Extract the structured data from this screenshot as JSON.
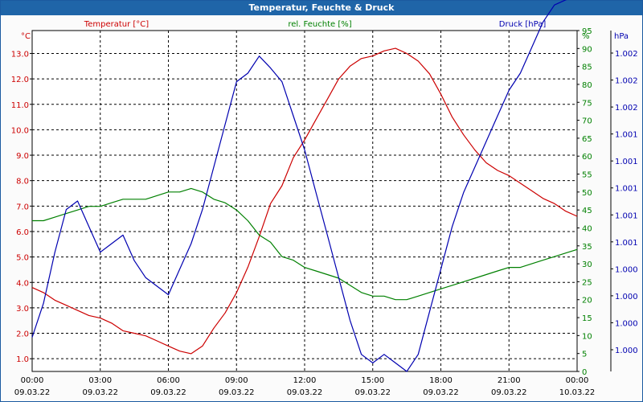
{
  "title": "Temperatur, Feuchte & Druck",
  "colors": {
    "titlebar": "#1f65a8",
    "temperature": "#cc0000",
    "humidity": "#008000",
    "pressure": "#0000b0",
    "grid": "#000000"
  },
  "chart_data": {
    "type": "line",
    "title": "Temperatur, Feuchte & Druck",
    "grid": true,
    "x_axis": {
      "ticks": [
        {
          "time": "00:00",
          "date": "09.03.22"
        },
        {
          "time": "03:00",
          "date": "09.03.22"
        },
        {
          "time": "06:00",
          "date": "09.03.22"
        },
        {
          "time": "09:00",
          "date": "09.03.22"
        },
        {
          "time": "12:00",
          "date": "09.03.22"
        },
        {
          "time": "15:00",
          "date": "09.03.22"
        },
        {
          "time": "18:00",
          "date": "09.03.22"
        },
        {
          "time": "21:00",
          "date": "09.03.22"
        },
        {
          "time": "00:00",
          "date": "10.03.22"
        }
      ],
      "range_hours": [
        0,
        24
      ]
    },
    "axes": {
      "left": {
        "label": "Temperatur [°C]",
        "unit": "°C",
        "range": [
          0.5,
          13.9
        ],
        "ticks": [
          "1.0",
          "2.0",
          "3.0",
          "4.0",
          "5.0",
          "6.0",
          "7.0",
          "8.0",
          "9.0",
          "10.0",
          "11.0",
          "12.0",
          "13.0"
        ]
      },
      "right1": {
        "label": "rel. Feuchte [%]",
        "unit": "%",
        "range": [
          0,
          95
        ],
        "ticks": [
          "0",
          "5",
          "10",
          "15",
          "20",
          "25",
          "30",
          "35",
          "40",
          "45",
          "50",
          "55",
          "60",
          "65",
          "70",
          "75",
          "80",
          "85",
          "90",
          "95"
        ]
      },
      "right2": {
        "label": "Druck [hPa]",
        "unit": "hPa",
        "range": [
          1000.0,
          1002.0
        ],
        "ticks": [
          "1.000",
          "1.000",
          "1.000",
          "1.000",
          "1.001",
          "1.001",
          "1.001",
          "1.001",
          "1.001",
          "1.002",
          "1.002",
          "1.002"
        ]
      }
    },
    "series": [
      {
        "name": "Temperatur [°C]",
        "axis": "left",
        "x": [
          0,
          0.5,
          1,
          1.5,
          2,
          2.5,
          3,
          3.5,
          4,
          4.5,
          5,
          5.5,
          6,
          6.5,
          7,
          7.5,
          8,
          8.5,
          9,
          9.5,
          10,
          10.5,
          11,
          11.5,
          12,
          12.5,
          13,
          13.5,
          14,
          14.5,
          15,
          15.5,
          16,
          16.5,
          17,
          17.5,
          18,
          18.5,
          19,
          19.5,
          20,
          20.5,
          21,
          21.5,
          22,
          22.5,
          23,
          23.5,
          24
        ],
        "values": [
          3.8,
          3.6,
          3.3,
          3.1,
          2.9,
          2.7,
          2.6,
          2.4,
          2.1,
          2.0,
          1.9,
          1.7,
          1.5,
          1.3,
          1.2,
          1.5,
          2.2,
          2.8,
          3.6,
          4.6,
          5.8,
          7.1,
          7.8,
          8.9,
          9.6,
          10.4,
          11.2,
          12.0,
          12.5,
          12.8,
          12.9,
          13.1,
          13.2,
          13.0,
          12.7,
          12.2,
          11.4,
          10.5,
          9.8,
          9.2,
          8.7,
          8.4,
          8.2,
          7.9,
          7.6,
          7.3,
          7.1,
          6.8,
          6.6
        ]
      },
      {
        "name": "rel. Feuchte [%]",
        "axis": "right1",
        "x": [
          0,
          0.5,
          1,
          1.5,
          2,
          2.5,
          3,
          3.5,
          4,
          4.5,
          5,
          5.5,
          6,
          6.5,
          7,
          7.5,
          8,
          8.5,
          9,
          9.5,
          10,
          10.5,
          11,
          11.5,
          12,
          12.5,
          13,
          13.5,
          14,
          14.5,
          15,
          15.5,
          16,
          16.5,
          17,
          17.5,
          18,
          18.5,
          19,
          19.5,
          20,
          20.5,
          21,
          21.5,
          22,
          22.5,
          23,
          23.5,
          24
        ],
        "values": [
          42,
          42,
          43,
          44,
          45,
          46,
          46,
          47,
          48,
          48,
          48,
          49,
          50,
          50,
          51,
          50,
          48,
          47,
          45,
          42,
          38,
          36,
          32,
          31,
          29,
          28,
          27,
          26,
          24,
          22,
          21,
          21,
          20,
          20,
          21,
          22,
          23,
          24,
          25,
          26,
          27,
          28,
          29,
          29,
          30,
          31,
          32,
          33,
          34
        ]
      },
      {
        "name": "Druck [hPa]",
        "axis": "right2",
        "x": [
          0,
          0.5,
          1,
          1.5,
          2,
          2.5,
          3,
          3.5,
          4,
          4.5,
          5,
          5.5,
          6,
          6.5,
          7,
          7.5,
          8,
          8.5,
          9,
          9.5,
          10,
          10.5,
          11,
          11.5,
          12,
          12.5,
          13,
          13.5,
          14,
          14.5,
          15,
          15.5,
          16,
          16.5,
          17,
          17.5,
          18,
          18.5,
          19,
          19.5,
          20,
          20.5,
          21,
          21.5,
          22,
          22.5,
          23,
          23.5,
          24
        ],
        "values": [
          1000.2,
          1000.4,
          1000.7,
          1000.95,
          1001.0,
          1000.85,
          1000.7,
          1000.75,
          1000.8,
          1000.65,
          1000.55,
          1000.5,
          1000.45,
          1000.6,
          1000.75,
          1000.95,
          1001.2,
          1001.45,
          1001.7,
          1001.75,
          1001.85,
          1001.78,
          1001.7,
          1001.5,
          1001.3,
          1001.05,
          1000.8,
          1000.55,
          1000.3,
          1000.1,
          1000.05,
          1000.1,
          1000.05,
          1000.0,
          1000.1,
          1000.35,
          1000.6,
          1000.85,
          1001.05,
          1001.2,
          1001.35,
          1001.5,
          1001.65,
          1001.75,
          1001.9,
          1002.05,
          1002.15,
          1002.18,
          1002.2
        ]
      }
    ]
  }
}
